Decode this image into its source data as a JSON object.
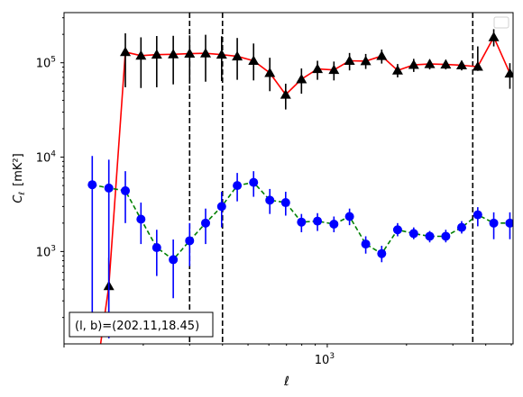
{
  "chart_data": {
    "type": "line",
    "xscale": "log",
    "yscale": "log",
    "xlabel": "ℓ",
    "ylabel_main": "C",
    "ylabel_sub": "ℓ",
    "ylabel_unit": "[mK²]",
    "xlim": [
      100,
      5080
    ],
    "ylim": [
      105,
      340000
    ],
    "x_major_ticks": [
      {
        "value": 1000,
        "base": "10",
        "exp": "3"
      }
    ],
    "y_major_ticks": [
      {
        "value": 1000,
        "base": "10",
        "exp": "3"
      },
      {
        "value": 10000,
        "base": "10",
        "exp": "4"
      },
      {
        "value": 100000,
        "base": "10",
        "exp": "5"
      }
    ],
    "annotation": "(l, b)=(202.11,18.45)",
    "legend": {
      "placement": "upper-right",
      "entries": []
    },
    "vlines": [
      300,
      400,
      3570
    ],
    "colors": {
      "series_black": "#000000",
      "line_red": "#ff0000",
      "series_blue": "#0000ff",
      "line_green": "#008000"
    },
    "series": [
      {
        "marker": "triangle",
        "x": [
          128,
          148,
          171,
          196,
          225,
          260,
          300,
          345,
          397,
          455,
          525,
          605,
          695,
          798,
          918,
          1060,
          1215,
          1400,
          1610,
          1850,
          2130,
          2450,
          2820,
          3240,
          3730,
          4290,
          4940
        ],
        "y": [
          25,
          430,
          130000,
          119000,
          122000,
          123000,
          125000,
          126000,
          122000,
          117000,
          105000,
          78000,
          46000,
          67000,
          86000,
          84000,
          105000,
          104000,
          118000,
          83000,
          95000,
          97000,
          96000,
          94000,
          91000,
          187000,
          77000
        ],
        "yerr_lo": [
          null,
          280,
          75000,
          65000,
          67000,
          64000,
          65000,
          63000,
          58000,
          51000,
          40000,
          28000,
          14000,
          20000,
          20000,
          19000,
          22000,
          18000,
          20000,
          13000,
          15000,
          12000,
          11000,
          11000,
          9000,
          38000,
          24000
        ],
        "yerr_hi": [
          null,
          430,
          75000,
          67000,
          70000,
          70000,
          70000,
          72000,
          69000,
          66000,
          55000,
          35000,
          14000,
          20000,
          19000,
          19000,
          22000,
          20000,
          20000,
          14000,
          15000,
          11000,
          11000,
          11000,
          58000,
          40000,
          22000
        ]
      },
      {
        "marker": "circle",
        "x": [
          128,
          148,
          171,
          196,
          225,
          260,
          300,
          345,
          397,
          455,
          525,
          605,
          695,
          798,
          918,
          1060,
          1215,
          1400,
          1610,
          1850,
          2130,
          2450,
          2820,
          3240,
          3730,
          4290,
          4940
        ],
        "y": [
          5100,
          4700,
          4400,
          2200,
          1100,
          820,
          1300,
          2000,
          3000,
          5000,
          5400,
          3500,
          3300,
          2050,
          2100,
          1950,
          2350,
          1200,
          950,
          1700,
          1550,
          1450,
          1450,
          1800,
          2450,
          2000,
          2000
        ],
        "yerr_lo": [
          4900,
          4580,
          2400,
          1000,
          550,
          500,
          600,
          800,
          1200,
          1600,
          1600,
          1000,
          900,
          450,
          450,
          350,
          450,
          250,
          180,
          250,
          200,
          200,
          200,
          250,
          600,
          650,
          650
        ],
        "yerr_hi": [
          5200,
          4700,
          2700,
          1100,
          600,
          520,
          700,
          850,
          1300,
          1800,
          1700,
          1100,
          1000,
          450,
          450,
          400,
          500,
          250,
          200,
          300,
          250,
          200,
          250,
          300,
          500,
          600,
          600
        ]
      }
    ]
  }
}
